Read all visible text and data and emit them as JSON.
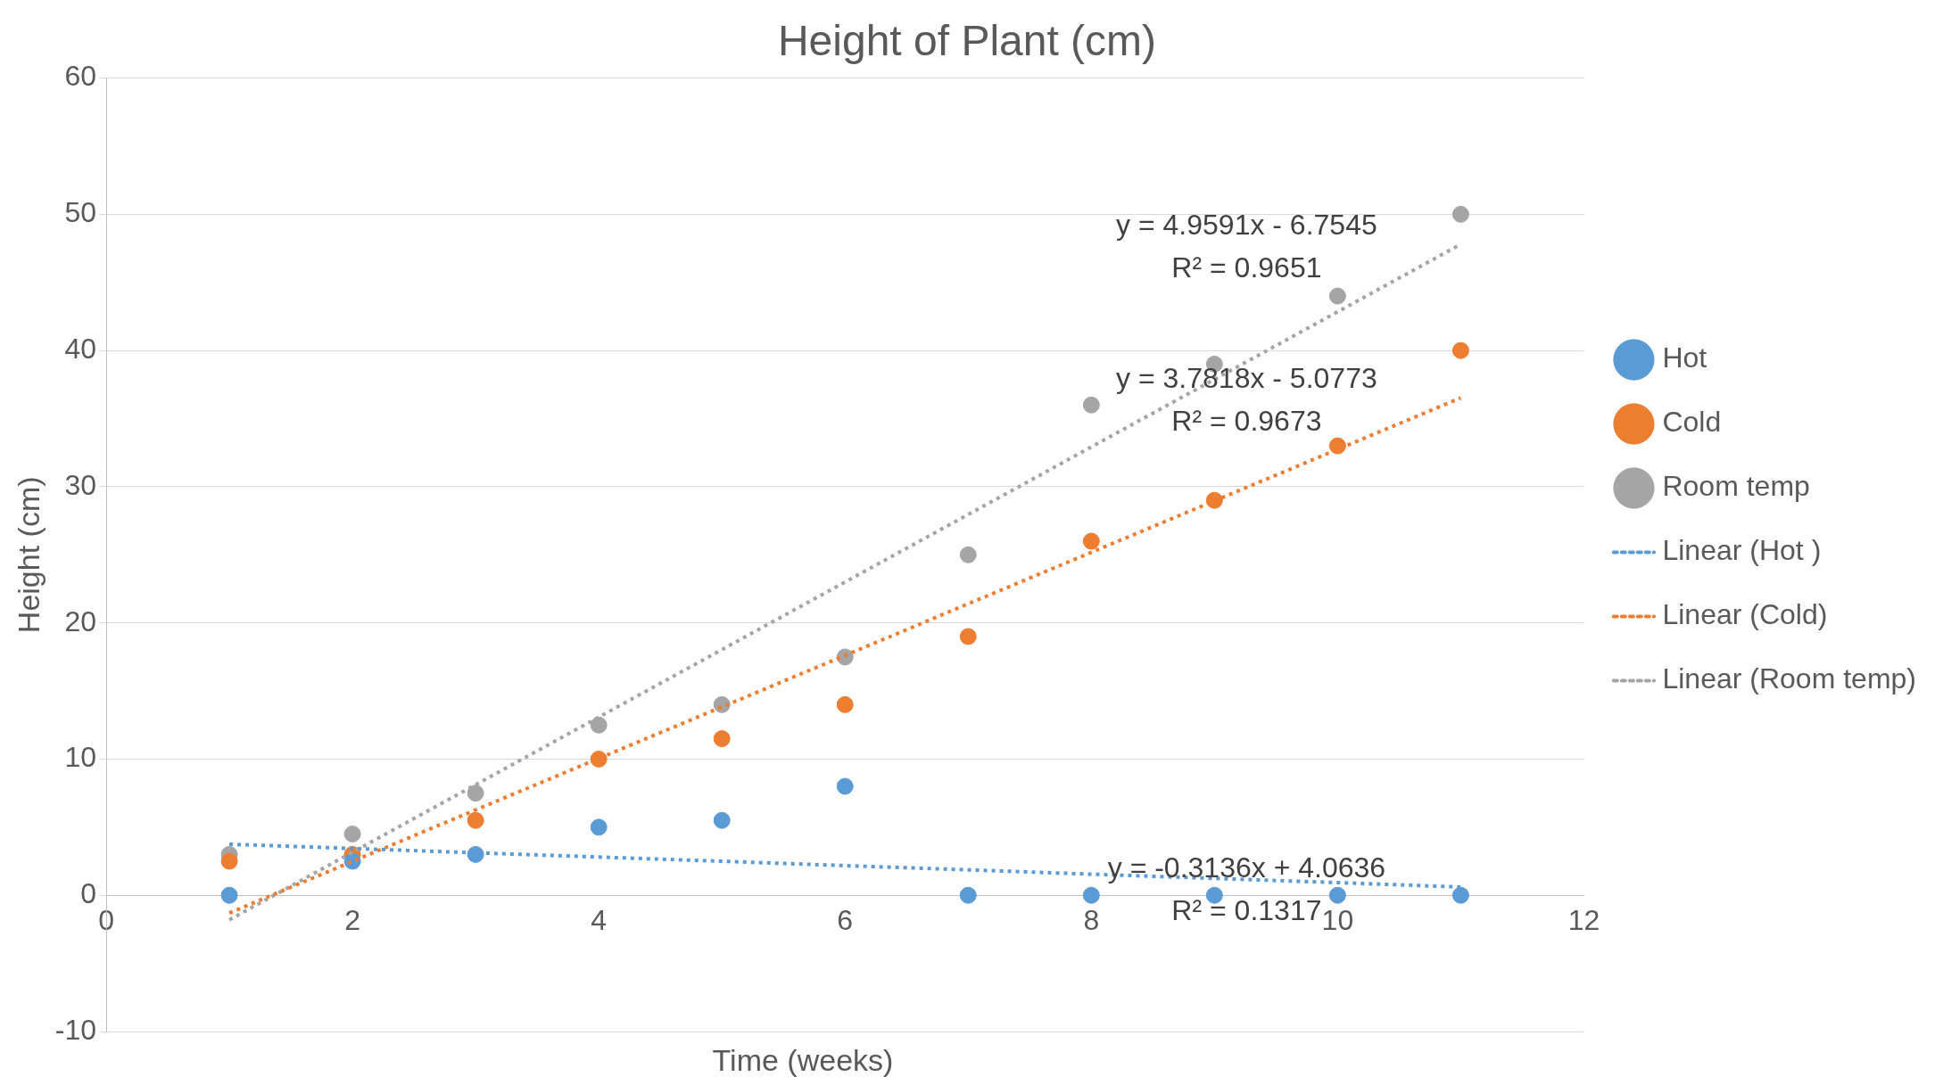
{
  "chart_data": {
    "type": "scatter",
    "title": "Height of Plant (cm)",
    "xlabel": "Time (weeks)",
    "ylabel": "Height (cm)",
    "x": [
      1,
      2,
      3,
      4,
      5,
      6,
      7,
      8,
      9,
      10,
      11
    ],
    "series": [
      {
        "name": "Hot",
        "color": "#5b9bd5",
        "values": [
          0,
          2.5,
          3,
          5,
          5.5,
          8,
          0,
          0,
          0,
          0,
          0
        ]
      },
      {
        "name": "Cold",
        "color": "#ed7d31",
        "values": [
          2.5,
          3,
          5.5,
          10,
          11.5,
          14,
          19,
          26,
          29,
          33,
          40
        ]
      },
      {
        "name": "Room temp",
        "color": "#a5a5a5",
        "values": [
          3,
          4.5,
          7.5,
          12.5,
          14,
          17.5,
          25,
          36,
          39,
          44,
          50
        ]
      },
      {
        "name": "Linear (Hot )",
        "type": "line",
        "color": "#5b9bd5",
        "values": [
          3.75,
          3.44,
          3.12,
          2.81,
          2.5,
          2.18,
          1.87,
          1.55,
          1.24,
          0.93,
          0.61
        ],
        "line_style": "dotted",
        "marker": "none"
      },
      {
        "name": "Linear (Cold)",
        "type": "line",
        "color": "#ed7d31",
        "values": [
          -1.3,
          2.49,
          6.27,
          10.05,
          13.83,
          17.61,
          21.4,
          25.18,
          28.96,
          32.74,
          36.52
        ],
        "line_style": "dotted",
        "marker": "none"
      },
      {
        "name": "Linear (Room temp)",
        "type": "line",
        "color": "#a5a5a5",
        "values": [
          -1.8,
          3.16,
          8.12,
          13.08,
          18.04,
          23,
          27.96,
          32.92,
          37.88,
          42.84,
          47.8
        ],
        "line_style": "dotted",
        "marker": "none"
      }
    ],
    "xlim": [
      0,
      12
    ],
    "xticks": [
      0,
      2,
      4,
      6,
      8,
      10,
      12
    ],
    "ylim": [
      -10,
      60
    ],
    "yticks": [
      -10,
      0,
      10,
      20,
      30,
      40,
      50,
      60
    ],
    "grid": "y",
    "legend": "right",
    "marker": "circle",
    "annotations": [
      "y = 4.9591x - 6.7545",
      "R² = 0.9651",
      "y = 3.7818x - 5.0773",
      "R² = 0.9673",
      "y = -0.3136x + 4.0636",
      "R² = 0.1317"
    ]
  }
}
